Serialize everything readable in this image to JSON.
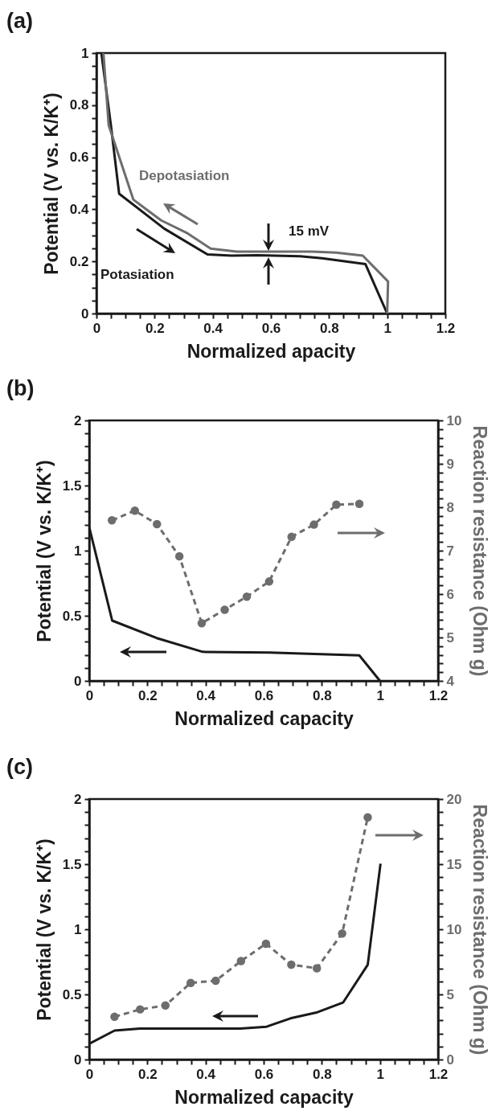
{
  "chart_data": [
    {
      "type": "line",
      "title": "(a)",
      "xlabel": "Normalized apacity",
      "ylabel": "Potential (V vs. K/K⁺)",
      "grid": false,
      "xlim": [
        0,
        1.2
      ],
      "ylim": [
        0,
        1
      ],
      "xticks": [
        0,
        {
          "value": 0.05,
          "label": null
        },
        {
          "value": 0.1,
          "label": null
        },
        {
          "value": 0.15,
          "label": null
        },
        0.2,
        {
          "value": 0.25,
          "label": null
        },
        {
          "value": 0.3,
          "label": null
        },
        {
          "value": 0.35,
          "label": null
        },
        0.4,
        {
          "value": 0.45,
          "label": null
        },
        {
          "value": 0.5,
          "label": null
        },
        {
          "value": 0.55,
          "label": null
        },
        0.6,
        {
          "value": 0.65,
          "label": null
        },
        {
          "value": 0.7,
          "label": null
        },
        {
          "value": 0.75,
          "label": null
        },
        0.8,
        {
          "value": 0.85,
          "label": null
        },
        {
          "value": 0.9,
          "label": null
        },
        {
          "value": 0.95,
          "label": null
        },
        1,
        {
          "value": 1.05,
          "label": null
        },
        {
          "value": 1.1,
          "label": null
        },
        {
          "value": 1.15,
          "label": null
        },
        1.2
      ],
      "yticks": [
        0,
        {
          "value": 0.05,
          "label": null
        },
        {
          "value": 0.1,
          "label": null
        },
        {
          "value": 0.15,
          "label": null
        },
        0.2,
        {
          "value": 0.25,
          "label": null
        },
        {
          "value": 0.3,
          "label": null
        },
        {
          "value": 0.35,
          "label": null
        },
        0.4,
        {
          "value": 0.45,
          "label": null
        },
        {
          "value": 0.5,
          "label": null
        },
        {
          "value": 0.55,
          "label": null
        },
        0.6,
        {
          "value": 0.65,
          "label": null
        },
        {
          "value": 0.7,
          "label": null
        },
        {
          "value": 0.75,
          "label": null
        },
        0.8,
        {
          "value": 0.85,
          "label": null
        },
        {
          "value": 0.9,
          "label": null
        },
        {
          "value": 0.95,
          "label": null
        },
        1
      ],
      "annotations": [
        {
          "text": "15 mV",
          "x": 0.6,
          "y": 0.23
        }
      ],
      "series": [
        {
          "name": "Potasiation",
          "color": "#1a1a1a",
          "line_style": "solid",
          "x": [
            0.017,
            0.05,
            0.078,
            0.233,
            0.382,
            0.465,
            0.554,
            0.7,
            0.776,
            0.925,
            1.0
          ],
          "values": [
            1.0,
            0.72,
            0.46,
            0.326,
            0.227,
            0.222,
            0.224,
            0.22,
            0.212,
            0.19,
            0
          ]
        },
        {
          "name": "Depotasiation",
          "color": "#6d6d6d",
          "line_style": "solid",
          "x": [
            1.0,
            1.003,
            0.916,
            0.825,
            0.742,
            0.482,
            0.393,
            0.31,
            0.222,
            0.127,
            0.042,
            0.024
          ],
          "values": [
            0,
            0.123,
            0.222,
            0.234,
            0.238,
            0.238,
            0.249,
            0.31,
            0.358,
            0.437,
            0.723,
            1.0
          ]
        }
      ]
    },
    {
      "type": "line",
      "title": "(b)",
      "xlabel": "Normalized capacity",
      "ylabel": "Potential (V vs. K/K⁺)",
      "y2label": "Reaction resistance (Ohm g)",
      "grid": false,
      "xlim": [
        0,
        1.2
      ],
      "ylim": [
        0,
        2
      ],
      "y2lim": [
        4,
        10
      ],
      "xticks": [
        0,
        {
          "value": 0.05,
          "label": null
        },
        {
          "value": 0.1,
          "label": null
        },
        {
          "value": 0.15,
          "label": null
        },
        0.2,
        {
          "value": 0.25,
          "label": null
        },
        {
          "value": 0.3,
          "label": null
        },
        {
          "value": 0.35,
          "label": null
        },
        0.4,
        {
          "value": 0.45,
          "label": null
        },
        {
          "value": 0.5,
          "label": null
        },
        {
          "value": 0.55,
          "label": null
        },
        0.6,
        {
          "value": 0.65,
          "label": null
        },
        {
          "value": 0.7,
          "label": null
        },
        {
          "value": 0.75,
          "label": null
        },
        0.8,
        {
          "value": 0.85,
          "label": null
        },
        {
          "value": 0.9,
          "label": null
        },
        {
          "value": 0.95,
          "label": null
        },
        1,
        {
          "value": 1.05,
          "label": null
        },
        {
          "value": 1.1,
          "label": null
        },
        {
          "value": 1.15,
          "label": null
        },
        1.2
      ],
      "yticks": [
        0,
        {
          "value": 0.1,
          "label": null
        },
        {
          "value": 0.2,
          "label": null
        },
        {
          "value": 0.3,
          "label": null
        },
        {
          "value": 0.4,
          "label": null
        },
        0.5,
        {
          "value": 0.6,
          "label": null
        },
        {
          "value": 0.7,
          "label": null
        },
        {
          "value": 0.8,
          "label": null
        },
        {
          "value": 0.9,
          "label": null
        },
        1,
        {
          "value": 1.1,
          "label": null
        },
        {
          "value": 1.2,
          "label": null
        },
        {
          "value": 1.3,
          "label": null
        },
        {
          "value": 1.4,
          "label": null
        },
        1.5,
        {
          "value": 1.6,
          "label": null
        },
        {
          "value": 1.7,
          "label": null
        },
        {
          "value": 1.8,
          "label": null
        },
        {
          "value": 1.9,
          "label": null
        },
        2
      ],
      "y2ticks": [
        4,
        {
          "value": 4.2,
          "label": null
        },
        {
          "value": 4.4,
          "label": null
        },
        {
          "value": 4.6,
          "label": null
        },
        {
          "value": 4.8,
          "label": null
        },
        5,
        {
          "value": 5.2,
          "label": null
        },
        {
          "value": 5.4,
          "label": null
        },
        {
          "value": 5.6,
          "label": null
        },
        {
          "value": 5.8,
          "label": null
        },
        6,
        {
          "value": 6.2,
          "label": null
        },
        {
          "value": 6.4,
          "label": null
        },
        {
          "value": 6.6,
          "label": null
        },
        {
          "value": 6.8,
          "label": null
        },
        7,
        {
          "value": 7.2,
          "label": null
        },
        {
          "value": 7.4,
          "label": null
        },
        {
          "value": 7.6,
          "label": null
        },
        {
          "value": 7.8,
          "label": null
        },
        8,
        {
          "value": 8.2,
          "label": null
        },
        {
          "value": 8.4,
          "label": null
        },
        {
          "value": 8.6,
          "label": null
        },
        {
          "value": 8.8,
          "label": null
        },
        9,
        {
          "value": 9.2,
          "label": null
        },
        {
          "value": 9.4,
          "label": null
        },
        {
          "value": 9.6,
          "label": null
        },
        {
          "value": 9.8,
          "label": null
        },
        10
      ],
      "series": [
        {
          "color": "#1a1a1a",
          "line_style": "solid",
          "x": [
            0,
            0.079,
            0.232,
            0.39,
            0.62,
            0.929,
            1.0
          ],
          "values": [
            1.18,
            0.463,
            0.329,
            0.223,
            0.218,
            0.196,
            0
          ]
        },
        {
          "color": "#6d6d6d",
          "axis": "y2",
          "marker": "circle",
          "line_style": "dashed",
          "x": [
            0.078,
            0.157,
            0.233,
            0.31,
            0.387,
            0.466,
            0.542,
            0.619,
            0.696,
            0.773,
            0.85,
            0.929
          ],
          "values": [
            7.7,
            7.92,
            7.61,
            6.87,
            5.33,
            5.64,
            5.94,
            6.29,
            7.32,
            7.6,
            8.06,
            8.08
          ]
        }
      ]
    },
    {
      "type": "line",
      "title": "(c)",
      "xlabel": "Normalized capacity",
      "ylabel": "Potential (V vs. K/K⁺)",
      "y2label": "Reaction resistance (Ohm g)",
      "grid": false,
      "xlim": [
        0,
        1.2
      ],
      "ylim": [
        0,
        2
      ],
      "y2lim": [
        0,
        20
      ],
      "xticks": [
        0,
        {
          "value": 0.05,
          "label": null
        },
        {
          "value": 0.1,
          "label": null
        },
        {
          "value": 0.15,
          "label": null
        },
        0.2,
        {
          "value": 0.25,
          "label": null
        },
        {
          "value": 0.3,
          "label": null
        },
        {
          "value": 0.35,
          "label": null
        },
        0.4,
        {
          "value": 0.45,
          "label": null
        },
        {
          "value": 0.5,
          "label": null
        },
        {
          "value": 0.55,
          "label": null
        },
        0.6,
        {
          "value": 0.65,
          "label": null
        },
        {
          "value": 0.7,
          "label": null
        },
        {
          "value": 0.75,
          "label": null
        },
        0.8,
        {
          "value": 0.85,
          "label": null
        },
        {
          "value": 0.9,
          "label": null
        },
        {
          "value": 0.95,
          "label": null
        },
        1,
        {
          "value": 1.05,
          "label": null
        },
        {
          "value": 1.1,
          "label": null
        },
        {
          "value": 1.15,
          "label": null
        },
        1.2
      ],
      "yticks": [
        0,
        {
          "value": 0.1,
          "label": null
        },
        {
          "value": 0.2,
          "label": null
        },
        {
          "value": 0.3,
          "label": null
        },
        {
          "value": 0.4,
          "label": null
        },
        0.5,
        {
          "value": 0.6,
          "label": null
        },
        {
          "value": 0.7,
          "label": null
        },
        {
          "value": 0.8,
          "label": null
        },
        {
          "value": 0.9,
          "label": null
        },
        1,
        {
          "value": 1.1,
          "label": null
        },
        {
          "value": 1.2,
          "label": null
        },
        {
          "value": 1.3,
          "label": null
        },
        {
          "value": 1.4,
          "label": null
        },
        1.5,
        {
          "value": 1.6,
          "label": null
        },
        {
          "value": 1.7,
          "label": null
        },
        {
          "value": 1.8,
          "label": null
        },
        {
          "value": 1.9,
          "label": null
        },
        2
      ],
      "y2ticks": [
        0,
        {
          "value": 1,
          "label": null
        },
        {
          "value": 2,
          "label": null
        },
        {
          "value": 3,
          "label": null
        },
        {
          "value": 4,
          "label": null
        },
        5,
        {
          "value": 6,
          "label": null
        },
        {
          "value": 7,
          "label": null
        },
        {
          "value": 8,
          "label": null
        },
        {
          "value": 9,
          "label": null
        },
        10,
        {
          "value": 11,
          "label": null
        },
        {
          "value": 12,
          "label": null
        },
        {
          "value": 13,
          "label": null
        },
        {
          "value": 14,
          "label": null
        },
        15,
        {
          "value": 16,
          "label": null
        },
        {
          "value": 17,
          "label": null
        },
        {
          "value": 18,
          "label": null
        },
        {
          "value": 19,
          "label": null
        },
        20
      ],
      "series": [
        {
          "color": "#1a1a1a",
          "line_style": "solid",
          "x": [
            0,
            0.087,
            0.174,
            0.52,
            0.61,
            0.692,
            0.785,
            0.873,
            0.958,
            1.002
          ],
          "values": [
            0.121,
            0.222,
            0.237,
            0.237,
            0.252,
            0.316,
            0.363,
            0.437,
            0.728,
            1.504
          ]
        },
        {
          "color": "#6d6d6d",
          "axis": "y2",
          "marker": "circle",
          "line_style": "dashed",
          "x": [
            0.087,
            0.175,
            0.262,
            0.349,
            0.435,
            0.522,
            0.608,
            0.695,
            0.783,
            0.87,
            0.958
          ],
          "values": [
            3.28,
            3.85,
            4.15,
            5.88,
            6.05,
            7.56,
            8.89,
            7.28,
            7.01,
            9.68,
            18.6
          ]
        }
      ]
    }
  ]
}
